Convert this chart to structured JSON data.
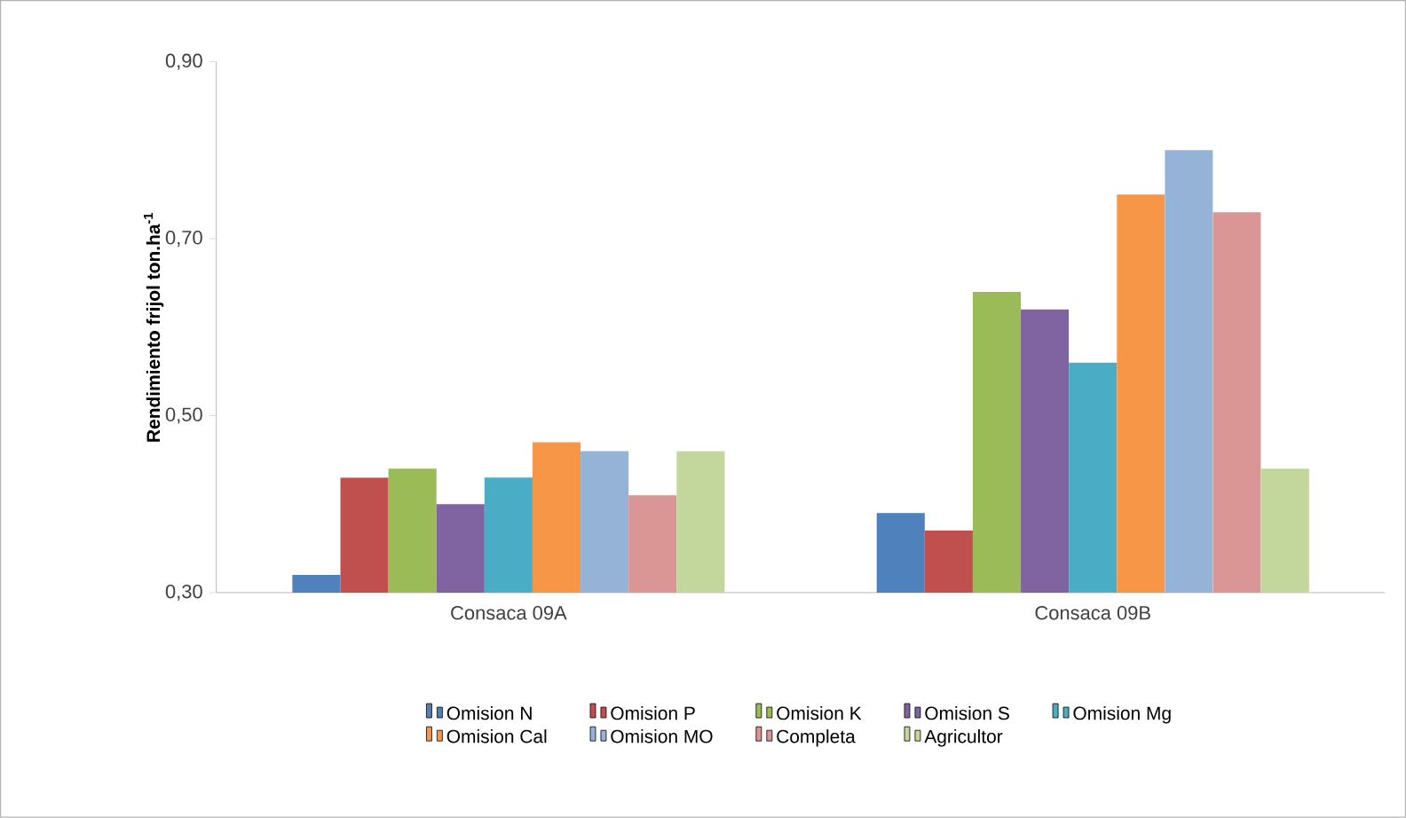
{
  "chart_data": {
    "type": "bar",
    "ylabel": "Rendimiento frijol ton.ha$^{-1}$",
    "categories": [
      "Consaca 09A",
      "Consaca 09B"
    ],
    "series": [
      {
        "name": "Omision N",
        "color": "#4f81bd",
        "values": [
          0.32,
          0.39
        ]
      },
      {
        "name": "Omision P",
        "color": "#c0504d",
        "values": [
          0.43,
          0.37
        ]
      },
      {
        "name": "Omision K",
        "color": "#9bbb59",
        "values": [
          0.44,
          0.64
        ]
      },
      {
        "name": "Omision S",
        "color": "#8064a2",
        "values": [
          0.4,
          0.62
        ]
      },
      {
        "name": "Omision Mg",
        "color": "#4bacc6",
        "values": [
          0.43,
          0.56
        ]
      },
      {
        "name": "Omision Cal",
        "color": "#f79646",
        "values": [
          0.47,
          0.75
        ]
      },
      {
        "name": "Omision MO",
        "color": "#95b3d7",
        "values": [
          0.46,
          0.8
        ]
      },
      {
        "name": "Completa",
        "color": "#d99694",
        "values": [
          0.41,
          0.73
        ]
      },
      {
        "name": "Agricultor",
        "color": "#c3d69b",
        "values": [
          0.46,
          0.44
        ]
      }
    ],
    "ylim": [
      0.3,
      0.9
    ],
    "yticks": [
      {
        "value": 0.3,
        "label": "0,30"
      },
      {
        "value": 0.5,
        "label": "0,50"
      },
      {
        "value": 0.7,
        "label": "0,70"
      },
      {
        "value": 0.9,
        "label": "0,90"
      }
    ],
    "legend": "bottom"
  }
}
